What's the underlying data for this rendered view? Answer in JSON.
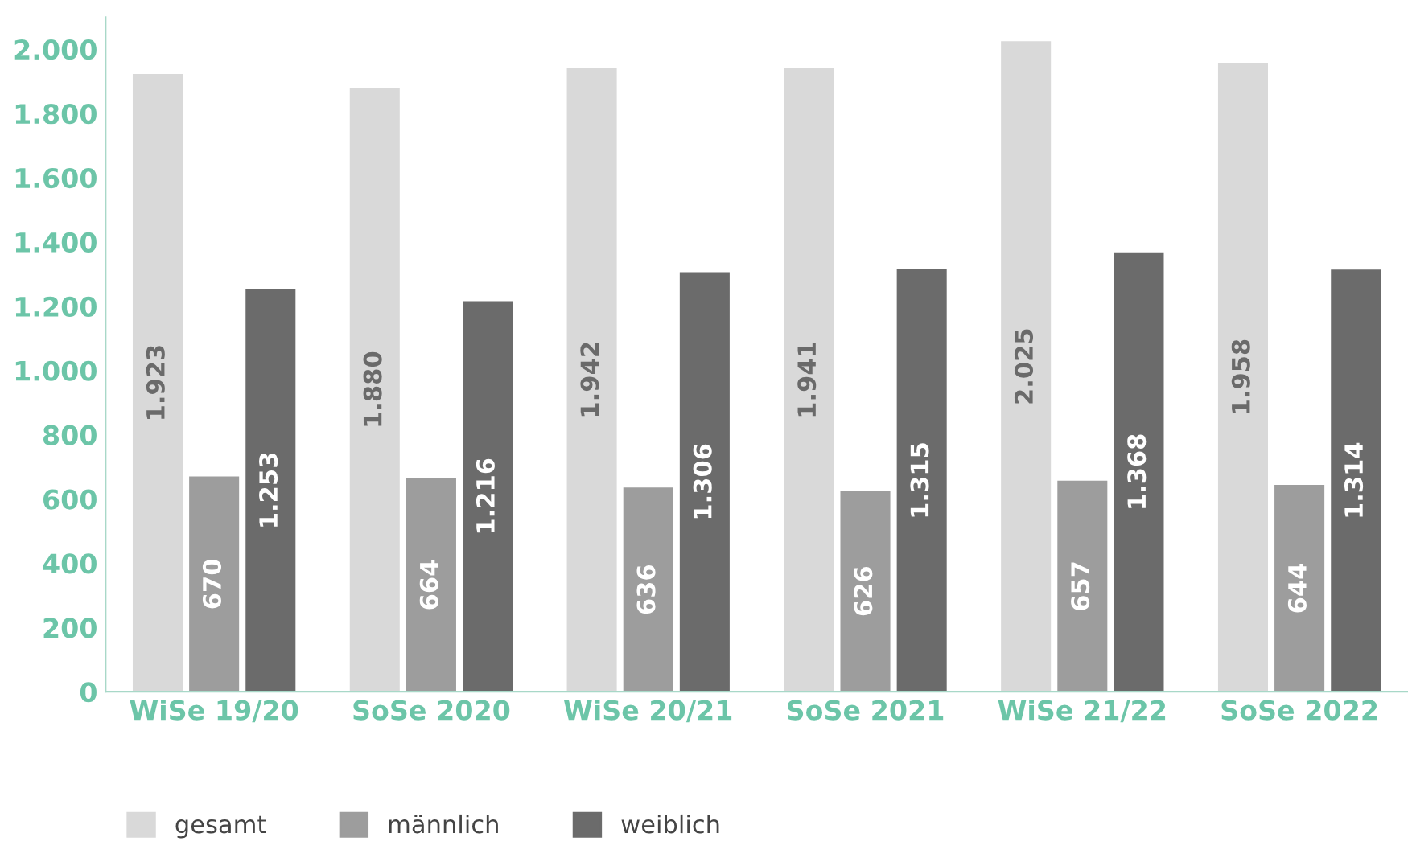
{
  "chart_data": {
    "type": "bar",
    "categories": [
      "WiSe 19/20",
      "SoSe 2020",
      "WiSe 20/21",
      "SoSe 2021",
      "WiSe 21/22",
      "SoSe 2022"
    ],
    "series": [
      {
        "name": "gesamt",
        "color": "#d9d9d9",
        "values": [
          1923,
          1880,
          1942,
          1941,
          2025,
          1958
        ],
        "value_labels": [
          "1.923",
          "1.880",
          "1.942",
          "1.941",
          "2.025",
          "1.958"
        ]
      },
      {
        "name": "männlich",
        "color": "#9d9d9d",
        "values": [
          670,
          664,
          636,
          626,
          657,
          644
        ],
        "value_labels": [
          "670",
          "664",
          "636",
          "626",
          "657",
          "644"
        ]
      },
      {
        "name": "weiblich",
        "color": "#6b6b6b",
        "values": [
          1253,
          1216,
          1306,
          1315,
          1368,
          1314
        ],
        "value_labels": [
          "1.253",
          "1.216",
          "1.306",
          "1.315",
          "1.368",
          "1.314"
        ]
      }
    ],
    "ylim": [
      0,
      2100
    ],
    "yticks": [
      0,
      200,
      400,
      600,
      800,
      {
        "value": 1000,
        "label": "1.000"
      },
      {
        "value": 1200,
        "label": "1.200"
      },
      {
        "value": 1400,
        "label": "1.400"
      },
      {
        "value": 1600,
        "label": "1.600"
      },
      {
        "value": 1800,
        "label": "1.800"
      },
      {
        "value": 2000,
        "label": "2.000"
      }
    ],
    "grid": false,
    "legend": "bottom left"
  }
}
